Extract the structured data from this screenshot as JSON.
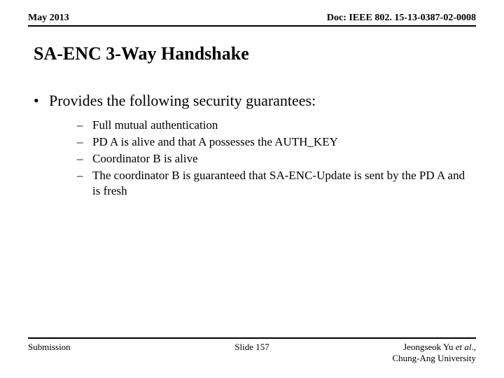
{
  "header": {
    "date": "May 2013",
    "doc": "Doc: IEEE 802. 15-13-0387-02-0008"
  },
  "title": "SA-ENC 3-Way Handshake",
  "main_bullet": "Provides the following security guarantees:",
  "sub_bullets": [
    "Full mutual authentication",
    "PD A is alive and that A possesses the AUTH_KEY",
    "Coordinator B is alive",
    "The coordinator B is guaranteed that SA-ENC-Update is sent by the PD A and is fresh"
  ],
  "footer": {
    "left": "Submission",
    "center": "Slide 157",
    "right_name": "Jeongseok Yu",
    "right_etal": " et al.",
    "right_sep": ", ",
    "right_affil": "Chung-Ang University"
  }
}
